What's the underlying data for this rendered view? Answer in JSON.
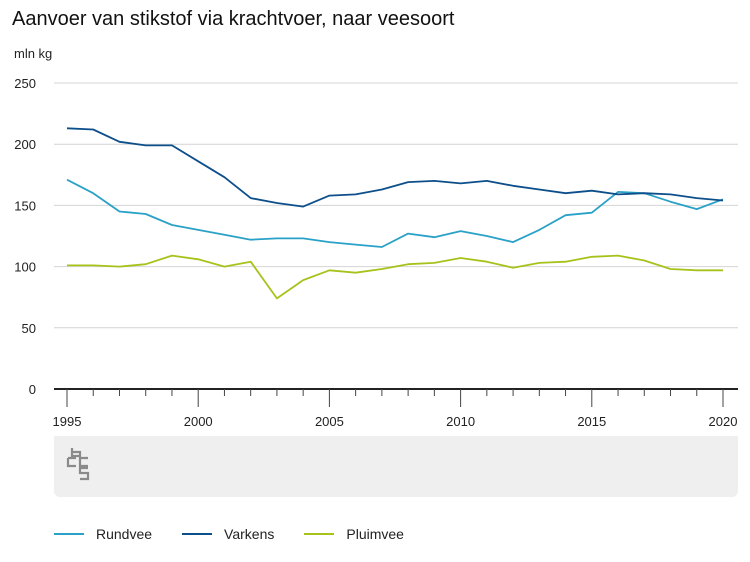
{
  "title": "Aanvoer van stikstof via krachtvoer, naar veesoort",
  "chart_data": {
    "type": "line",
    "ylabel": "mln kg",
    "ylim": [
      0,
      250
    ],
    "yticks": [
      0,
      50,
      100,
      150,
      200,
      250
    ],
    "xlim": [
      1995,
      2020
    ],
    "xticks": [
      1995,
      2000,
      2005,
      2010,
      2015,
      2020
    ],
    "x": [
      1995,
      1996,
      1997,
      1998,
      1999,
      2000,
      2001,
      2002,
      2003,
      2004,
      2005,
      2006,
      2007,
      2008,
      2009,
      2010,
      2011,
      2012,
      2013,
      2014,
      2015,
      2016,
      2017,
      2018,
      2019,
      2020
    ],
    "series": [
      {
        "name": "Rundvee",
        "color": "#2aa1c7",
        "values": [
          171,
          160,
          145,
          143,
          134,
          130,
          126,
          122,
          123,
          123,
          120,
          118,
          116,
          127,
          124,
          129,
          125,
          120,
          130,
          142,
          144,
          161,
          160,
          153,
          147,
          155
        ]
      },
      {
        "name": "Varkens",
        "color": "#0d4f8b",
        "values": [
          213,
          212,
          202,
          199,
          199,
          186,
          173,
          156,
          152,
          149,
          158,
          159,
          163,
          169,
          170,
          168,
          170,
          166,
          163,
          160,
          162,
          159,
          160,
          159,
          156,
          154
        ]
      },
      {
        "name": "Pluimvee",
        "color": "#a8c21c",
        "values": [
          101,
          101,
          100,
          102,
          109,
          106,
          100,
          104,
          74,
          89,
          97,
          95,
          98,
          102,
          103,
          107,
          104,
          99,
          103,
          104,
          108,
          109,
          105,
          98,
          97,
          97
        ]
      }
    ],
    "grid": true,
    "legend": "bottom"
  },
  "icons": {
    "logo": "cbs-logo-icon"
  }
}
